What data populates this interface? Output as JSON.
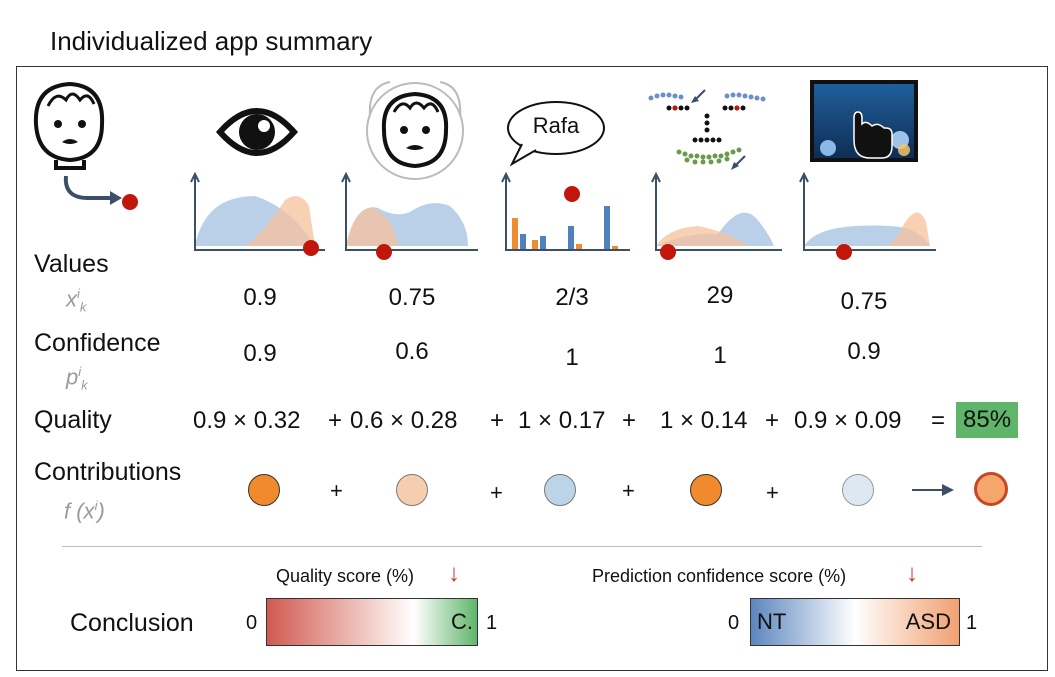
{
  "title": "Individualized app summary",
  "rows": {
    "values_label": "Values",
    "values_sub": "x",
    "values_sup": "i",
    "values_subk": "k",
    "confidence_label": "Confidence",
    "confidence_sub": "p",
    "confidence_sup": "i",
    "confidence_subk": "k",
    "quality_label": "Quality",
    "contributions_label": "Contributions",
    "contributions_sub": "f (x",
    "contributions_sup": "i",
    "contributions_close": ")",
    "conclusion_label": "Conclusion"
  },
  "speech_bubble": "Rafa",
  "values": [
    "0.9",
    "0.75",
    "2/3",
    "29",
    "0.75"
  ],
  "confidences": [
    "0.9",
    "0.6",
    "1",
    "1",
    "0.9"
  ],
  "quality_terms": [
    "0.9 × 0.32",
    "+",
    "0.6 × 0.28",
    "+",
    "1 × 0.17",
    "+",
    "1 × 0.14",
    "+",
    "0.9 × 0.09",
    "="
  ],
  "quality_result": "85%",
  "contributions": {
    "plus": "+",
    "colors": [
      "#f08a2c",
      "#f7cdb0",
      "#bcd4e8",
      "#f08a2c",
      "#dde8f2"
    ],
    "result_color": "#f5a66a",
    "result_border": "#c9452a"
  },
  "quality_scale": {
    "label": "Quality score (%)",
    "min": "0",
    "max": "1",
    "marker": "C.",
    "arrow": "↓",
    "color_low": "#d05a52",
    "color_high": "#5fb56a"
  },
  "prediction_scale": {
    "label": "Prediction confidence score (%)",
    "min": "0",
    "max": "1",
    "left_text": "NT",
    "right_text": "ASD",
    "arrow": "↓",
    "color_low": "#5c86bf",
    "color_high": "#f0a070"
  },
  "colors": {
    "blue_dist": "#a9c4e4",
    "orange_dist": "#f6c29c",
    "marker": "#c0160c",
    "bar_orange": "#ef8c2f",
    "bar_blue": "#4f82bd"
  }
}
